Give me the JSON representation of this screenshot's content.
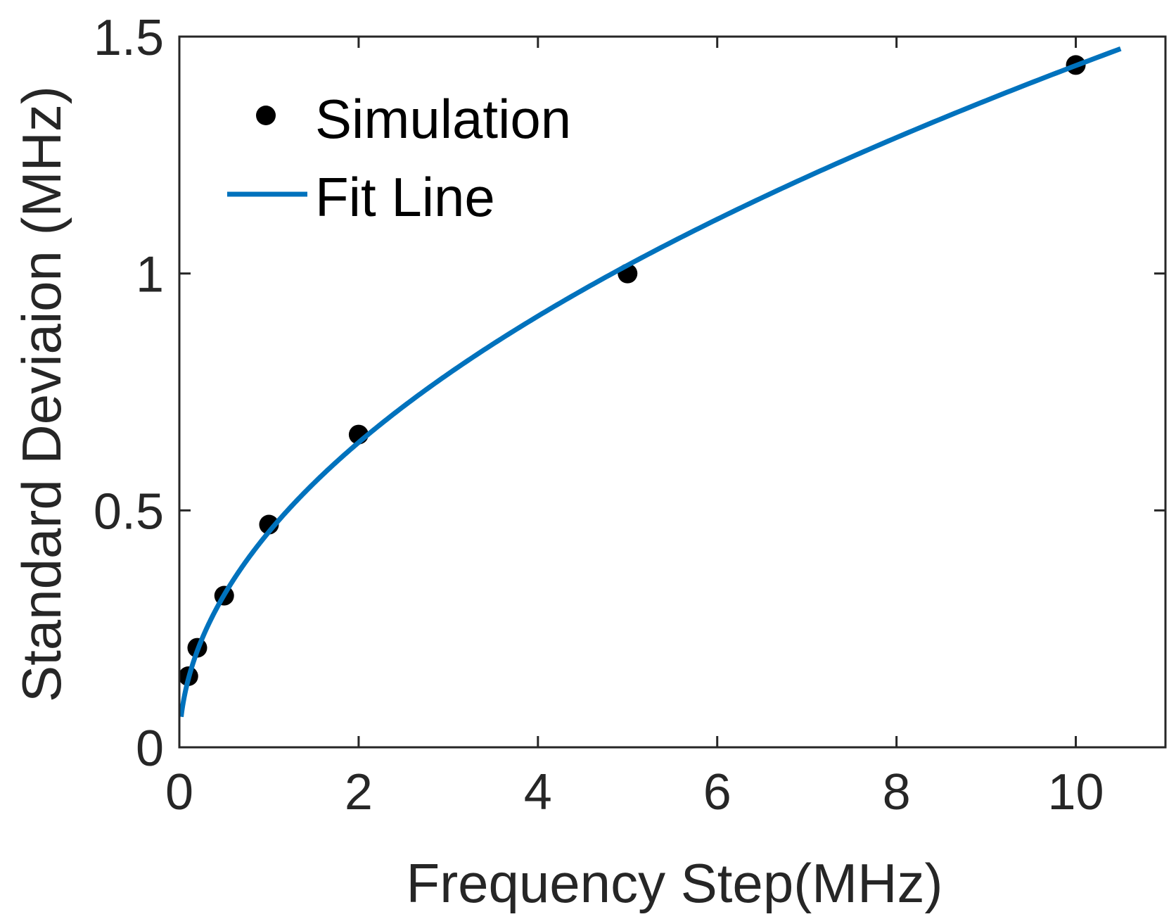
{
  "chart_data": {
    "type": "scatter",
    "title": "",
    "xlabel": "Frequency Step(MHz)",
    "ylabel": "Standard Deviaion (MHz)",
    "xlim": [
      0,
      11
    ],
    "ylim": [
      0,
      1.5
    ],
    "xticks": [
      0,
      2,
      4,
      6,
      8,
      10
    ],
    "xtick_labels": [
      "0",
      "2",
      "4",
      "6",
      "8",
      "10"
    ],
    "yticks": [
      0,
      0.5,
      1,
      1.5
    ],
    "ytick_labels": [
      "0",
      "0.5",
      "1",
      "1.5"
    ],
    "grid": false,
    "box": true,
    "legend_position": "top-left",
    "series": [
      {
        "name": "Simulation",
        "kind": "markers",
        "color": "#000000",
        "x": [
          0.1,
          0.2,
          0.5,
          1,
          2,
          5,
          10
        ],
        "y": [
          0.15,
          0.21,
          0.32,
          0.47,
          0.66,
          1.0,
          1.44
        ]
      },
      {
        "name": "Fit Line",
        "kind": "line",
        "color": "#0072BD",
        "x_range": [
          0.02,
          10.5
        ],
        "model": "a*sqrt(x)",
        "params": {
          "a": 0.455
        }
      }
    ]
  }
}
